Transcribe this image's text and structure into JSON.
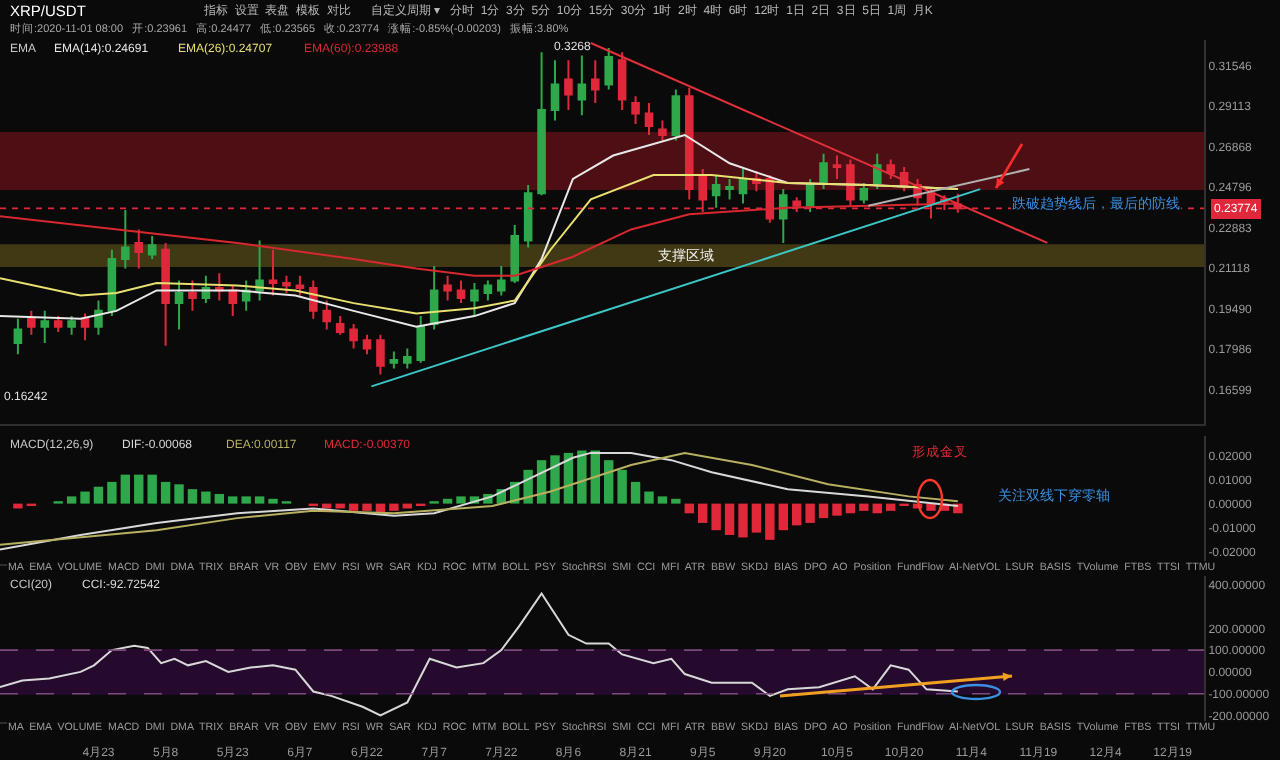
{
  "chart_data": [
    {
      "type": "candlestick",
      "x": [
        "2020-04-05",
        "2020-04-08",
        "2020-04-11",
        "2020-04-14",
        "2020-04-17",
        "2020-04-20",
        "2020-04-23",
        "2020-04-26",
        "2020-04-29",
        "2020-05-02",
        "2020-05-05",
        "2020-05-08",
        "2020-05-11",
        "2020-05-14",
        "2020-05-17",
        "2020-05-20",
        "2020-05-23",
        "2020-05-26",
        "2020-05-29",
        "2020-06-01",
        "2020-06-04",
        "2020-06-07",
        "2020-06-10",
        "2020-06-13",
        "2020-06-16",
        "2020-06-19",
        "2020-06-22",
        "2020-06-25",
        "2020-06-28",
        "2020-07-01",
        "2020-07-04",
        "2020-07-07",
        "2020-07-10",
        "2020-07-13",
        "2020-07-16",
        "2020-07-19",
        "2020-07-22",
        "2020-07-25",
        "2020-07-28",
        "2020-07-31",
        "2020-08-03",
        "2020-08-06",
        "2020-08-09",
        "2020-08-12",
        "2020-08-15",
        "2020-08-18",
        "2020-08-21",
        "2020-08-24",
        "2020-08-27",
        "2020-08-30",
        "2020-09-02",
        "2020-09-05",
        "2020-09-08",
        "2020-09-11",
        "2020-09-14",
        "2020-09-17",
        "2020-09-20",
        "2020-09-23",
        "2020-09-26",
        "2020-09-29",
        "2020-10-02",
        "2020-10-05",
        "2020-10-08",
        "2020-10-11",
        "2020-10-14",
        "2020-10-17",
        "2020-10-20",
        "2020-10-23",
        "2020-10-26",
        "2020-10-29",
        "2020-11-01"
      ],
      "ohlc": [
        [
          0.182,
          0.191,
          0.178,
          0.187
        ],
        [
          0.191,
          0.194,
          0.185,
          0.188
        ],
        [
          0.188,
          0.194,
          0.182,
          0.19
        ],
        [
          0.19,
          0.192,
          0.186,
          0.188
        ],
        [
          0.188,
          0.192,
          0.185,
          0.19
        ],
        [
          0.191,
          0.193,
          0.183,
          0.188
        ],
        [
          0.188,
          0.198,
          0.185,
          0.194
        ],
        [
          0.194,
          0.219,
          0.192,
          0.215
        ],
        [
          0.215,
          0.237,
          0.211,
          0.22
        ],
        [
          0.222,
          0.228,
          0.211,
          0.218
        ],
        [
          0.217,
          0.225,
          0.215,
          0.221
        ],
        [
          0.219,
          0.222,
          0.181,
          0.197
        ],
        [
          0.197,
          0.206,
          0.187,
          0.201
        ],
        [
          0.201,
          0.206,
          0.194,
          0.199
        ],
        [
          0.199,
          0.208,
          0.197,
          0.203
        ],
        [
          0.203,
          0.209,
          0.198,
          0.202
        ],
        [
          0.202,
          0.204,
          0.192,
          0.197
        ],
        [
          0.198,
          0.206,
          0.194,
          0.202
        ],
        [
          0.202,
          0.223,
          0.198,
          0.206
        ],
        [
          0.206,
          0.219,
          0.2,
          0.205
        ],
        [
          0.205,
          0.208,
          0.201,
          0.204
        ],
        [
          0.204,
          0.208,
          0.2,
          0.203
        ],
        [
          0.203,
          0.206,
          0.191,
          0.194
        ],
        [
          0.194,
          0.198,
          0.187,
          0.19
        ],
        [
          0.189,
          0.192,
          0.185,
          0.186
        ],
        [
          0.187,
          0.189,
          0.18,
          0.183
        ],
        [
          0.183,
          0.185,
          0.178,
          0.18
        ],
        [
          0.183,
          0.185,
          0.171,
          0.174
        ],
        [
          0.175,
          0.179,
          0.173,
          0.176
        ],
        [
          0.175,
          0.18,
          0.173,
          0.177
        ],
        [
          0.176,
          0.192,
          0.175,
          0.188
        ],
        [
          0.189,
          0.212,
          0.187,
          0.202
        ],
        [
          0.204,
          0.208,
          0.198,
          0.202
        ],
        [
          0.202,
          0.206,
          0.197,
          0.199
        ],
        [
          0.198,
          0.205,
          0.192,
          0.202
        ],
        [
          0.201,
          0.206,
          0.198,
          0.204
        ],
        [
          0.202,
          0.212,
          0.2,
          0.206
        ],
        [
          0.206,
          0.23,
          0.205,
          0.225
        ],
        [
          0.223,
          0.249,
          0.22,
          0.245
        ],
        [
          0.245,
          0.324,
          0.244,
          0.289
        ],
        [
          0.289,
          0.319,
          0.283,
          0.304
        ],
        [
          0.307,
          0.319,
          0.289,
          0.298
        ],
        [
          0.295,
          0.322,
          0.286,
          0.304
        ],
        [
          0.307,
          0.319,
          0.293,
          0.301
        ],
        [
          0.304,
          0.3268,
          0.301,
          0.321
        ],
        [
          0.319,
          0.324,
          0.289,
          0.295
        ],
        [
          0.293,
          0.297,
          0.281,
          0.287
        ],
        [
          0.287,
          0.293,
          0.275,
          0.28
        ],
        [
          0.278,
          0.283,
          0.272,
          0.275
        ],
        [
          0.275,
          0.301,
          0.272,
          0.297
        ],
        [
          0.297,
          0.302,
          0.242,
          0.247
        ],
        [
          0.254,
          0.257,
          0.236,
          0.242
        ],
        [
          0.244,
          0.254,
          0.238,
          0.249
        ],
        [
          0.247,
          0.252,
          0.242,
          0.248
        ],
        [
          0.245,
          0.257,
          0.24,
          0.252
        ],
        [
          0.252,
          0.256,
          0.246,
          0.25
        ],
        [
          0.252,
          0.254,
          0.231,
          0.233
        ],
        [
          0.233,
          0.247,
          0.222,
          0.244
        ],
        [
          0.241,
          0.243,
          0.236,
          0.239
        ],
        [
          0.239,
          0.252,
          0.236,
          0.249
        ],
        [
          0.25,
          0.265,
          0.247,
          0.26
        ],
        [
          0.259,
          0.264,
          0.252,
          0.258
        ],
        [
          0.259,
          0.262,
          0.239,
          0.242
        ],
        [
          0.242,
          0.25,
          0.24,
          0.247
        ],
        [
          0.25,
          0.265,
          0.247,
          0.259
        ],
        [
          0.259,
          0.262,
          0.252,
          0.255
        ],
        [
          0.255,
          0.258,
          0.246,
          0.249
        ],
        [
          0.249,
          0.252,
          0.239,
          0.243
        ],
        [
          0.245,
          0.247,
          0.233,
          0.24
        ],
        [
          0.242,
          0.244,
          0.237,
          0.241
        ],
        [
          0.23961,
          0.24477,
          0.23565,
          0.23774
        ]
      ],
      "colors": [
        "#2ea84a",
        "#e0283a",
        "#2ea84a",
        "#e0283a",
        "#2ea84a",
        "#e0283a",
        "#2ea84a",
        "#2ea84a",
        "#2ea84a",
        "#e0283a",
        "#2ea84a",
        "#e0283a",
        "#2ea84a",
        "#e0283a",
        "#2ea84a",
        "#e0283a",
        "#e0283a",
        "#2ea84a",
        "#2ea84a",
        "#e0283a",
        "#e0283a",
        "#e0283a",
        "#e0283a",
        "#e0283a",
        "#e0283a",
        "#e0283a",
        "#e0283a",
        "#e0283a",
        "#2ea84a",
        "#2ea84a",
        "#2ea84a",
        "#2ea84a",
        "#e0283a",
        "#e0283a",
        "#2ea84a",
        "#2ea84a",
        "#2ea84a",
        "#2ea84a",
        "#2ea84a",
        "#2ea84a",
        "#2ea84a",
        "#e0283a",
        "#2ea84a",
        "#e0283a",
        "#2ea84a",
        "#e0283a",
        "#e0283a",
        "#e0283a",
        "#e0283a",
        "#2ea84a",
        "#e0283a",
        "#e0283a",
        "#2ea84a",
        "#2ea84a",
        "#2ea84a",
        "#e0283a",
        "#e0283a",
        "#2ea84a",
        "#e0283a",
        "#2ea84a",
        "#2ea84a",
        "#e0283a",
        "#e0283a",
        "#2ea84a",
        "#2ea84a",
        "#e0283a",
        "#e0283a",
        "#e0283a",
        "#e0283a",
        "#e0283a",
        "#e0283a"
      ],
      "series": [
        {
          "type": "line",
          "name": "EMA(14):0.24691",
          "color": "#e8e8e8",
          "x": [
            "2020-04-01",
            "2020-04-19",
            "2020-04-27",
            "2020-05-06",
            "2020-05-24",
            "2020-06-06",
            "2020-06-19",
            "2020-07-03",
            "2020-07-16",
            "2020-07-25",
            "2020-07-31",
            "2020-08-07",
            "2020-08-16",
            "2020-09-01",
            "2020-09-11",
            "2020-09-24",
            "2020-10-12",
            "2020-11-01"
          ],
          "values": [
            0.192,
            0.191,
            0.194,
            0.202,
            0.202,
            0.2,
            0.194,
            0.188,
            0.192,
            0.197,
            0.215,
            0.252,
            0.264,
            0.275,
            0.26,
            0.25,
            0.249,
            0.247
          ]
        },
        {
          "type": "line",
          "name": "EMA(26):0.24707",
          "color": "#e8e070",
          "x": [
            "2020-04-01",
            "2020-04-19",
            "2020-04-27",
            "2020-05-06",
            "2020-05-24",
            "2020-06-06",
            "2020-06-19",
            "2020-07-03",
            "2020-07-16",
            "2020-07-25",
            "2020-08-02",
            "2020-08-11",
            "2020-08-25",
            "2020-09-07",
            "2020-09-24",
            "2020-10-12",
            "2020-11-01"
          ],
          "values": [
            0.207,
            0.2,
            0.201,
            0.205,
            0.204,
            0.202,
            0.197,
            0.193,
            0.195,
            0.198,
            0.219,
            0.242,
            0.254,
            0.254,
            0.25,
            0.249,
            0.247
          ]
        },
        {
          "type": "line",
          "name": "EMA(60):0.23988",
          "color": "#d8282f",
          "x": [
            "2020-04-01",
            "2020-05-24",
            "2020-06-19",
            "2020-07-03",
            "2020-07-16",
            "2020-07-25",
            "2020-08-07",
            "2020-08-20",
            "2020-09-02",
            "2020-09-24",
            "2020-10-12",
            "2020-11-01"
          ],
          "values": [
            0.234,
            0.222,
            0.215,
            0.211,
            0.208,
            0.208,
            0.216,
            0.228,
            0.235,
            0.238,
            0.239,
            0.24
          ]
        },
        {
          "type": "line",
          "color": "#e0303a",
          "x": [
            "2020-08-11",
            "2020-11-21"
          ],
          "values": [
            0.33,
            0.222
          ]
        },
        {
          "type": "line",
          "color": "#3cc6c6",
          "x": [
            "2020-06-23",
            "2020-11-06"
          ],
          "values": [
            0.167,
            0.247
          ]
        },
        {
          "type": "line",
          "color": "#b0b0b0",
          "x": [
            "2020-10-12",
            "2020-11-17"
          ],
          "values": [
            0.239,
            0.257
          ]
        }
      ],
      "xlim": [
        "2020-04-01",
        "2020-12-26"
      ],
      "ylim": [
        0.155,
        0.332
      ],
      "log": "y",
      "yticks": [
        0.31546,
        0.29113,
        0.26868,
        0.24796,
        0.22883,
        0.21118,
        {
          "value": 0.1949,
          "label": "0.19490"
        },
        0.17986,
        0.16599
      ],
      "tick_labels": "y",
      "legend": "top left",
      "legend_title": "EMA",
      "bands": [
        {
          "axis": "y",
          "from": 0.247,
          "to": 0.276,
          "color": "#5a1016"
        },
        {
          "axis": "y",
          "from": 0.212,
          "to": 0.221,
          "label": "支撑区域",
          "color": "#4a4216"
        }
      ],
      "ref_lines": [
        {
          "axis": "y",
          "value": 0.23774,
          "label": "0.23774",
          "color": "#e0283a",
          "line_style": "dotted"
        }
      ],
      "annotations": [
        "XRP/USDT",
        "指标  设置  表盘  模板  对比      自定义周期 ▾   分时  1分  3分  5分  10分  15分  30分  1时  2时  4时  6时  12时  1日  2日  3日  5日  1周  月K",
        "时间:2020-11-01 08:00   开:0.23961   高:0.24477   低:0.23565   收:0.23774   涨幅:-0.85%(-0.00203)   振幅:3.80%",
        "跌破趋势线后，最后的防线",
        {
          "text": "0.3268",
          "x": "2020-08-12",
          "y": 0.3268
        },
        "0.16242"
      ]
    },
    {
      "type": "bar",
      "x": [
        "2020-04-05",
        "2020-04-08",
        "2020-04-11",
        "2020-04-14",
        "2020-04-17",
        "2020-04-20",
        "2020-04-23",
        "2020-04-26",
        "2020-04-29",
        "2020-05-02",
        "2020-05-05",
        "2020-05-08",
        "2020-05-11",
        "2020-05-14",
        "2020-05-17",
        "2020-05-20",
        "2020-05-23",
        "2020-05-26",
        "2020-05-29",
        "2020-06-01",
        "2020-06-04",
        "2020-06-07",
        "2020-06-10",
        "2020-06-13",
        "2020-06-16",
        "2020-06-19",
        "2020-06-22",
        "2020-06-25",
        "2020-06-28",
        "2020-07-01",
        "2020-07-04",
        "2020-07-07",
        "2020-07-10",
        "2020-07-13",
        "2020-07-16",
        "2020-07-19",
        "2020-07-22",
        "2020-07-25",
        "2020-07-28",
        "2020-07-31",
        "2020-08-03",
        "2020-08-06",
        "2020-08-09",
        "2020-08-12",
        "2020-08-15",
        "2020-08-18",
        "2020-08-21",
        "2020-08-24",
        "2020-08-27",
        "2020-08-30",
        "2020-09-02",
        "2020-09-05",
        "2020-09-08",
        "2020-09-11",
        "2020-09-14",
        "2020-09-17",
        "2020-09-20",
        "2020-09-23",
        "2020-09-26",
        "2020-09-29",
        "2020-10-02",
        "2020-10-05",
        "2020-10-08",
        "2020-10-11",
        "2020-10-14",
        "2020-10-17",
        "2020-10-20",
        "2020-10-23",
        "2020-10-26",
        "2020-10-29",
        "2020-11-01"
      ],
      "series": [
        {
          "type": "line",
          "name": "DIF:-0.00068",
          "color": "#d8d8d8",
          "x": [
            "2020-04-01",
            "2020-04-19",
            "2020-05-06",
            "2020-05-24",
            "2020-06-10",
            "2020-06-28",
            "2020-07-07",
            "2020-07-20",
            "2020-07-29",
            "2020-08-07",
            "2020-08-11",
            "2020-08-20",
            "2020-08-29",
            "2020-09-07",
            "2020-09-24",
            "2020-10-12",
            "2020-11-01"
          ],
          "values": [
            -0.019,
            -0.013,
            -0.008,
            -0.004,
            -0.002,
            -0.005,
            -0.004,
            0.003,
            0.011,
            0.019,
            0.021,
            0.021,
            0.018,
            0.013,
            0.006,
            0.003,
            -0.001
          ]
        },
        {
          "type": "line",
          "name": "DEA:0.00117",
          "color": "#b8b060",
          "x": [
            "2020-04-01",
            "2020-05-06",
            "2020-05-24",
            "2020-06-10",
            "2020-06-28",
            "2020-07-20",
            "2020-08-02",
            "2020-08-20",
            "2020-09-01",
            "2020-09-16",
            "2020-10-03",
            "2020-10-21",
            "2020-11-01"
          ],
          "values": [
            -0.017,
            -0.011,
            -0.006,
            -0.003,
            -0.004,
            -0.001,
            0.005,
            0.016,
            0.021,
            0.016,
            0.008,
            0.003,
            0.001
          ]
        },
        {
          "type": "bar",
          "name": "MACD:-0.00370",
          "values": [
            -0.002,
            -0.001,
            0,
            0.001,
            0.003,
            0.005,
            0.007,
            0.009,
            0.012,
            0.012,
            0.012,
            0.009,
            0.008,
            0.006,
            0.005,
            0.004,
            0.003,
            0.003,
            0.003,
            0.002,
            0.001,
            0,
            -0.001,
            -0.002,
            -0.002,
            -0.003,
            -0.003,
            -0.004,
            -0.003,
            -0.002,
            -0.001,
            0.001,
            0.002,
            0.003,
            0.003,
            0.004,
            0.006,
            0.009,
            0.014,
            0.018,
            0.02,
            0.021,
            0.022,
            0.022,
            0.018,
            0.014,
            0.009,
            0.005,
            0.003,
            0.002,
            -0.004,
            -0.008,
            -0.011,
            -0.013,
            -0.014,
            -0.012,
            -0.015,
            -0.011,
            -0.009,
            -0.008,
            -0.006,
            -0.005,
            -0.004,
            -0.003,
            -0.004,
            -0.003,
            -0.001,
            -0.002,
            -0.003,
            -0.003,
            -0.004
          ],
          "colors": [
            "#e0283a",
            "#e0283a",
            "#2ea84a",
            "#2ea84a",
            "#2ea84a",
            "#2ea84a",
            "#2ea84a",
            "#2ea84a",
            "#2ea84a",
            "#2ea84a",
            "#2ea84a",
            "#2ea84a",
            "#2ea84a",
            "#2ea84a",
            "#2ea84a",
            "#2ea84a",
            "#2ea84a",
            "#2ea84a",
            "#2ea84a",
            "#2ea84a",
            "#2ea84a",
            "#2ea84a",
            "#e0283a",
            "#e0283a",
            "#e0283a",
            "#e0283a",
            "#e0283a",
            "#e0283a",
            "#e0283a",
            "#e0283a",
            "#e0283a",
            "#2ea84a",
            "#2ea84a",
            "#2ea84a",
            "#2ea84a",
            "#2ea84a",
            "#2ea84a",
            "#2ea84a",
            "#2ea84a",
            "#2ea84a",
            "#2ea84a",
            "#2ea84a",
            "#2ea84a",
            "#2ea84a",
            "#2ea84a",
            "#2ea84a",
            "#2ea84a",
            "#2ea84a",
            "#2ea84a",
            "#2ea84a",
            "#e0283a",
            "#e0283a",
            "#e0283a",
            "#e0283a",
            "#e0283a",
            "#e0283a",
            "#e0283a",
            "#e0283a",
            "#e0283a",
            "#e0283a",
            "#e0283a",
            "#e0283a",
            "#e0283a",
            "#e0283a",
            "#e0283a",
            "#e0283a",
            "#e0283a",
            "#e0283a",
            "#e0283a",
            "#e0283a",
            "#e0283a"
          ]
        }
      ],
      "xlim": [
        "2020-04-01",
        "2020-12-26"
      ],
      "ylim": [
        -0.025,
        0.028
      ],
      "yticks": [
        {
          "value": 0.02,
          "label": "0.02000"
        },
        {
          "value": 0.01,
          "label": "0.01000"
        },
        {
          "value": 0,
          "label": "0.00000"
        },
        {
          "value": -0.01,
          "label": "-0.01000"
        },
        {
          "value": -0.02,
          "label": "-0.02000"
        }
      ],
      "tick_labels": "y",
      "legend": "top left",
      "legend_title": "MACD(12,26,9)",
      "annotations": [
        "形成金叉",
        "关注双线下穿零轴",
        "MA  EMA  VOLUME  MACD  DMI  DMA  TRIX  BRAR  VR  OBV  EMV  RSI  WR  SAR  KDJ  ROC  MTM  BOLL  PSY  StochRSI  SMI  CCI  MFI  ATR  BBW  SKDJ  BIAS  DPO  AO  Position  FundFlow  AI-NetVOL  LSUR  BASIS  TVolume  FTBS  TTSI  TTMU"
      ]
    },
    {
      "type": "line",
      "series": [
        {
          "name": "CCI:-92.72542",
          "color": "#d8d8d8",
          "x": [
            "2020-04-01",
            "2020-04-06",
            "2020-04-12",
            "2020-04-19",
            "2020-04-22",
            "2020-04-26",
            "2020-05-01",
            "2020-05-04",
            "2020-05-07",
            "2020-05-10",
            "2020-05-13",
            "2020-05-17",
            "2020-05-22",
            "2020-05-27",
            "2020-06-01",
            "2020-06-06",
            "2020-06-10",
            "2020-06-14",
            "2020-06-21",
            "2020-06-25",
            "2020-07-01",
            "2020-07-06",
            "2020-07-12",
            "2020-07-18",
            "2020-07-22",
            "2020-07-26",
            "2020-07-31",
            "2020-08-06",
            "2020-08-10",
            "2020-08-15",
            "2020-08-18",
            "2020-08-25",
            "2020-08-29",
            "2020-09-01",
            "2020-09-07",
            "2020-09-16",
            "2020-09-20",
            "2020-09-24",
            "2020-10-01",
            "2020-10-09",
            "2020-10-13",
            "2020-10-17",
            "2020-10-21",
            "2020-10-25",
            "2020-11-01"
          ],
          "values": [
            -70,
            -40,
            -30,
            0,
            30,
            100,
            120,
            110,
            40,
            60,
            30,
            50,
            0,
            20,
            30,
            10,
            -90,
            -110,
            -160,
            -200,
            -140,
            60,
            20,
            40,
            100,
            210,
            360,
            170,
            130,
            130,
            80,
            40,
            60,
            -10,
            -50,
            -50,
            -110,
            -80,
            -70,
            -20,
            -80,
            30,
            10,
            -80,
            -90
          ]
        }
      ],
      "xlim": [
        "2020-04-01",
        "2020-12-26"
      ],
      "ylim": [
        -230,
        440
      ],
      "xticks": [
        {
          "value": "2020-04-23",
          "label": "4月23"
        },
        {
          "value": "2020-05-08",
          "label": "5月8"
        },
        {
          "value": "2020-05-23",
          "label": "5月23"
        },
        {
          "value": "2020-06-07",
          "label": "6月7"
        },
        {
          "value": "2020-06-22",
          "label": "6月22"
        },
        {
          "value": "2020-07-07",
          "label": "7月7"
        },
        {
          "value": "2020-07-22",
          "label": "7月22"
        },
        {
          "value": "2020-08-06",
          "label": "8月6"
        },
        {
          "value": "2020-08-21",
          "label": "8月21"
        },
        {
          "value": "2020-09-05",
          "label": "9月5"
        },
        {
          "value": "2020-09-20",
          "label": "9月20"
        },
        {
          "value": "2020-10-05",
          "label": "10月5"
        },
        {
          "value": "2020-10-20",
          "label": "10月20"
        },
        {
          "value": "2020-11-04",
          "label": "11月4"
        },
        {
          "value": "2020-11-19",
          "label": "11月19"
        },
        {
          "value": "2020-12-04",
          "label": "12月4"
        },
        {
          "value": "2020-12-19",
          "label": "12月19"
        }
      ],
      "yticks": [
        {
          "value": 400,
          "label": "400.00000"
        },
        {
          "value": 200,
          "label": "200.00000"
        },
        {
          "value": 100,
          "label": "100.00000"
        },
        {
          "value": 0,
          "label": "0.00000"
        },
        {
          "value": -100,
          "label": "-100.00000"
        },
        {
          "value": -200,
          "label": "-200.00000"
        }
      ],
      "legend": "top left",
      "legend_title": "CCI(20)",
      "bands": [
        {
          "axis": "y",
          "from": -100,
          "to": 100,
          "color": "#2b0b35"
        }
      ],
      "ref_lines": [
        {
          "axis": "y",
          "value": 100,
          "color": "#7a4a7a",
          "line_style": "dashed"
        },
        {
          "axis": "y",
          "value": -100,
          "color": "#7a4a7a",
          "line_style": "dashed"
        }
      ],
      "annotations": [
        "MA  EMA  VOLUME  MACD  DMI  DMA  TRIX  BRAR  VR  OBV  EMV  RSI  WR  SAR  KDJ  ROC  MTM  BOLL  PSY  StochRSI  SMI  CCI  MFI  ATR  BBW  SKDJ  BIAS  DPO  AO  Position  FundFlow  AI-NetVOL  LSUR  BASIS  TVolume  FTBS  TTSI  TTMU"
      ]
    }
  ]
}
